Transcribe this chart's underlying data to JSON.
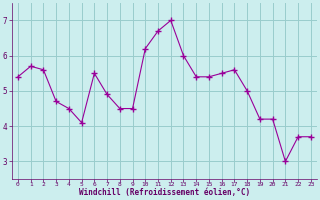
{
  "x": [
    0,
    1,
    2,
    3,
    4,
    5,
    6,
    7,
    8,
    9,
    10,
    11,
    12,
    13,
    14,
    15,
    16,
    17,
    18,
    19,
    20,
    21,
    22,
    23
  ],
  "y": [
    5.4,
    5.7,
    5.6,
    4.7,
    4.5,
    4.1,
    5.5,
    4.9,
    4.5,
    4.5,
    6.2,
    6.7,
    7.0,
    6.0,
    5.4,
    5.4,
    5.5,
    5.6,
    5.0,
    4.2,
    4.2,
    3.0,
    3.7,
    3.7
  ],
  "line_color": "#990099",
  "marker": "+",
  "marker_size": 4,
  "bg_color": "#cceeee",
  "grid_color": "#99cccc",
  "xlabel": "Windchill (Refroidissement éolien,°C)",
  "xlabel_color": "#660066",
  "tick_color": "#660066",
  "ylim": [
    2.5,
    7.5
  ],
  "xlim": [
    -0.5,
    23.5
  ],
  "yticks": [
    3,
    4,
    5,
    6,
    7
  ],
  "xticks": [
    0,
    1,
    2,
    3,
    4,
    5,
    6,
    7,
    8,
    9,
    10,
    11,
    12,
    13,
    14,
    15,
    16,
    17,
    18,
    19,
    20,
    21,
    22,
    23
  ],
  "figsize": [
    3.2,
    2.0
  ],
  "dpi": 100
}
